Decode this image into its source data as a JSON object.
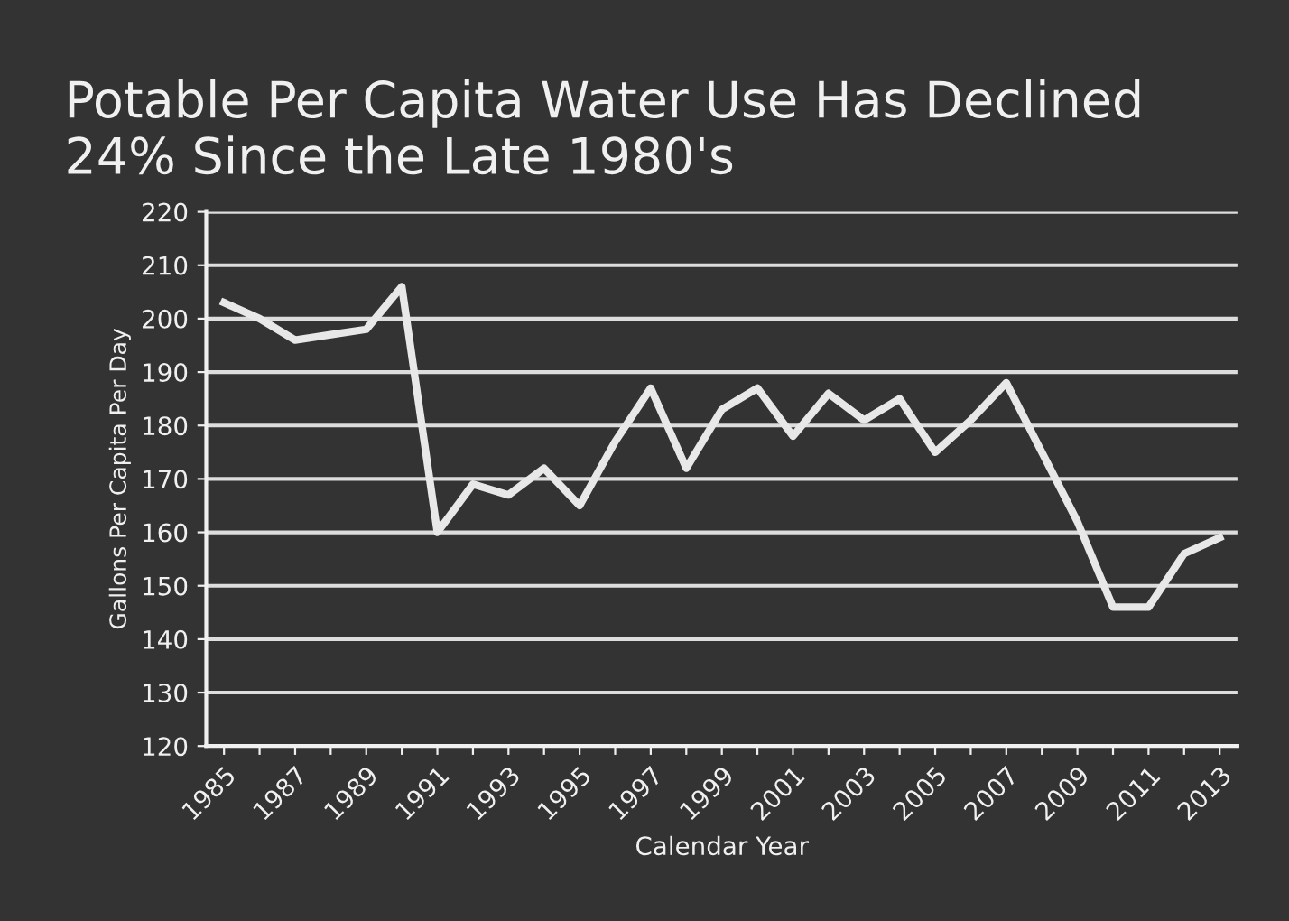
{
  "chart_data": {
    "type": "line",
    "title": "Potable Per Capita Water Use Has Declined\n24% Since the Late 1980's",
    "xlabel": "Calendar Year",
    "ylabel": "Gallons Per Capita Per Day",
    "categories": [
      "1985",
      null,
      "1987",
      null,
      "1989",
      null,
      "1991",
      null,
      "1993",
      null,
      "1995",
      null,
      "1997",
      null,
      "1999",
      null,
      "2001",
      null,
      "2003",
      null,
      "2005",
      null,
      "2007",
      null,
      "2009",
      null,
      "2011",
      null,
      "2013"
    ],
    "series": [
      {
        "color": "#e8e8e8",
        "values": [
          203,
          200,
          196,
          197,
          198,
          206,
          160,
          169,
          167,
          172,
          165,
          177,
          187,
          172,
          183,
          187,
          178,
          186,
          181,
          185,
          175,
          181,
          188,
          175,
          162,
          146,
          146,
          156,
          159
        ]
      }
    ],
    "ylim": [
      120,
      220
    ],
    "yticks": [
      120,
      130,
      140,
      150,
      160,
      170,
      180,
      190,
      200,
      210,
      220
    ],
    "grid": "y",
    "marker": "none",
    "line_style": "solid"
  }
}
